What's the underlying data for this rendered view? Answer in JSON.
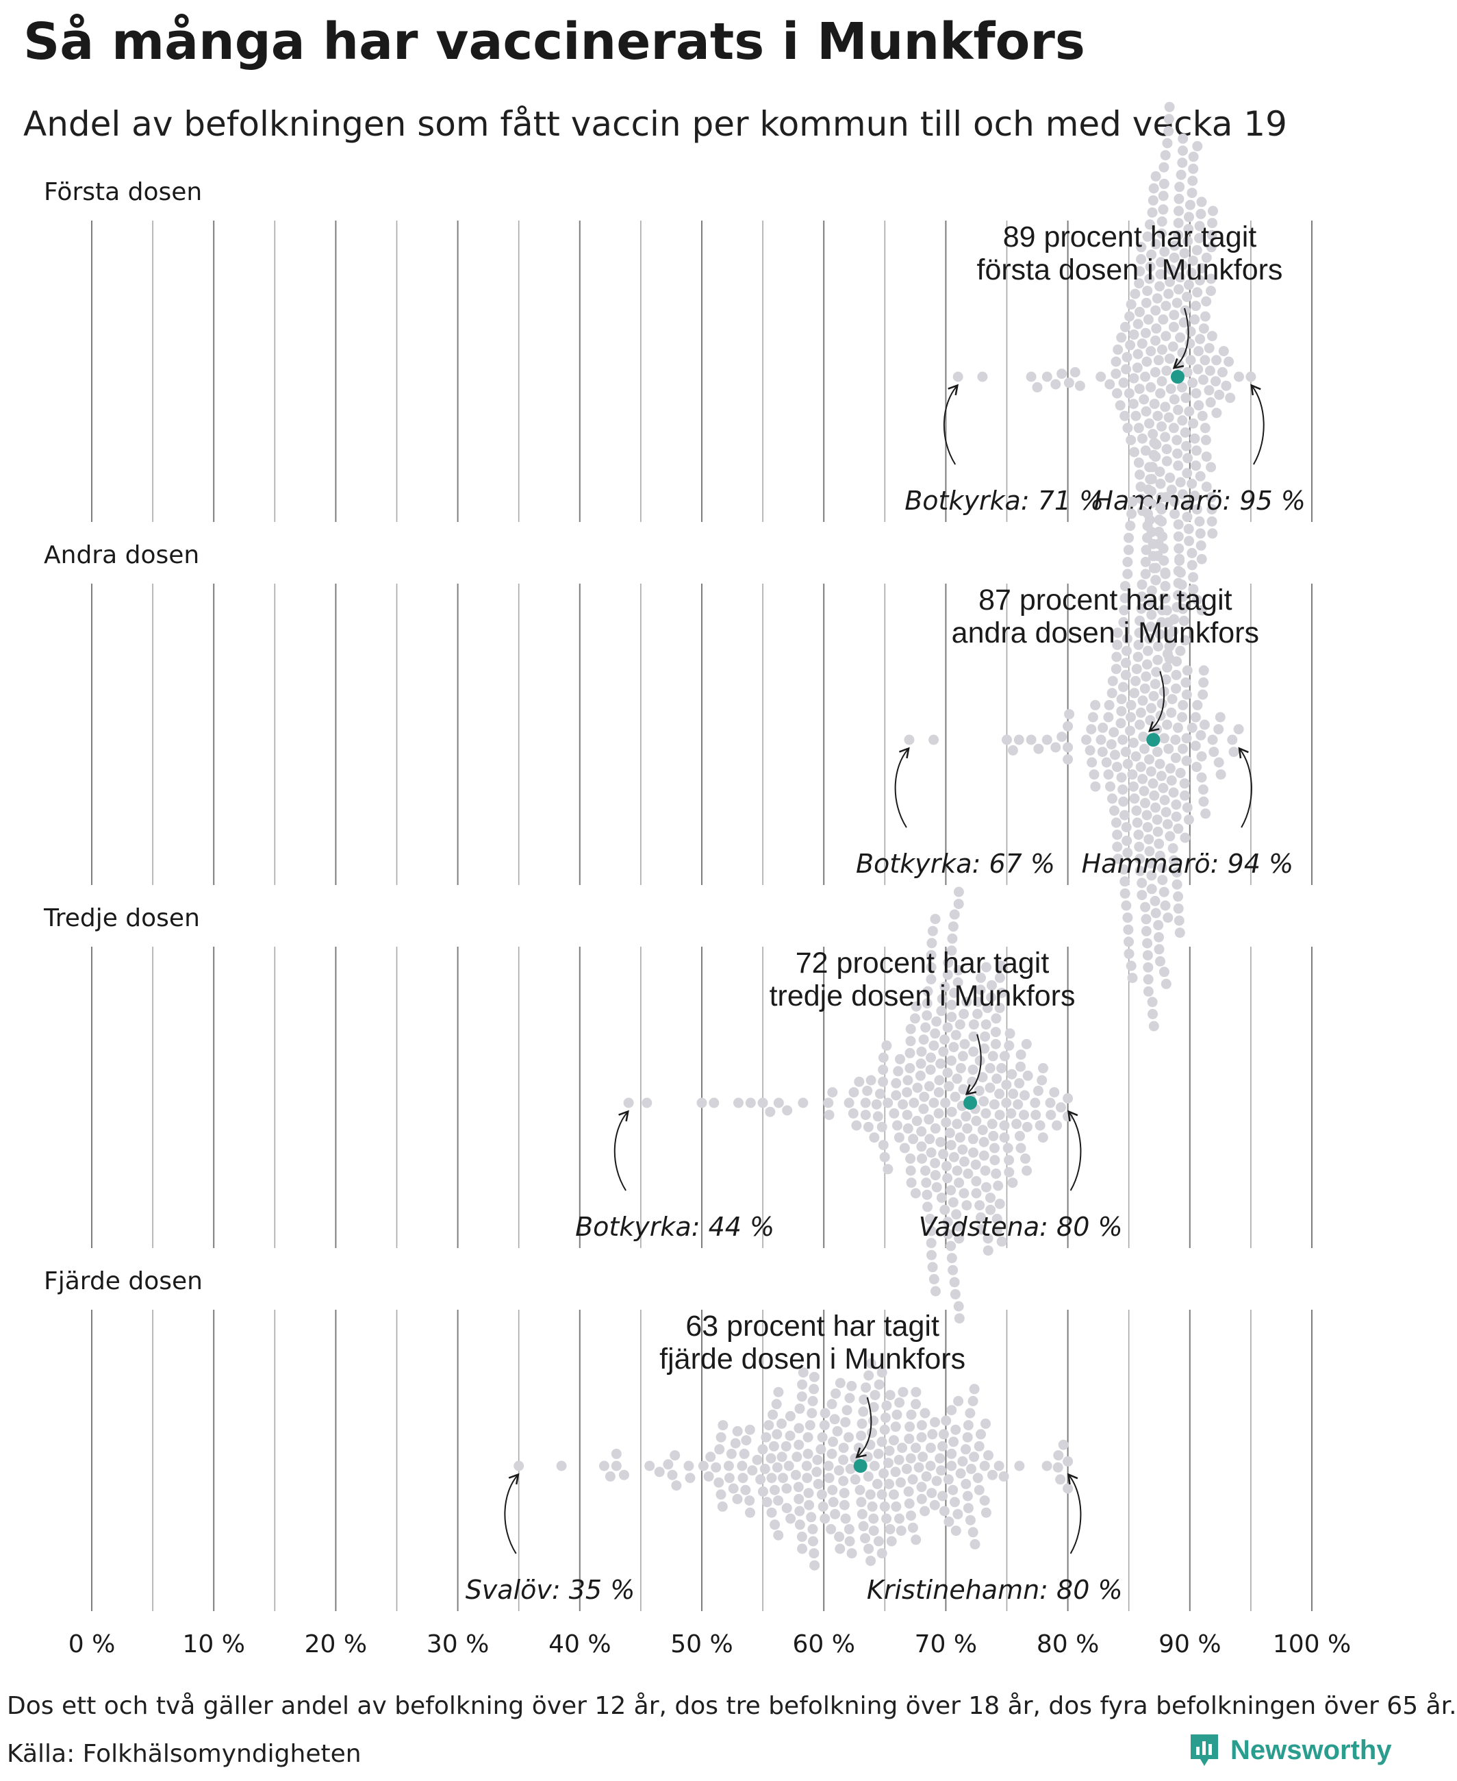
{
  "title": "Så många har vaccinerats i Munkfors",
  "subtitle": "Andel av befolkningen som fått vaccin per kommun till och med vecka 19",
  "note": "Dos ett och två gäller andel av befolkning över 12 år, dos tre befolkning över 18 år, dos fyra befolkningen över 65 år.",
  "source": "Källa: Folkhälsomyndigheten",
  "brand": {
    "name": "Newsworthy",
    "icon": "newsworthy-logo-icon"
  },
  "colors": {
    "highlight": "#1f9a8a",
    "dots": "#d3d3d9",
    "grid": "#8a8a8a",
    "text": "#1a1a1a"
  },
  "chart_data": {
    "type": "scatter",
    "style": "beeswarm",
    "x_axis": {
      "range": [
        0,
        100
      ],
      "ticks": [
        0,
        10,
        20,
        30,
        40,
        50,
        60,
        70,
        80,
        90,
        100
      ],
      "tick_labels": [
        "0 %",
        "10 %",
        "20 %",
        "30 %",
        "40 %",
        "50 %",
        "60 %",
        "70 %",
        "80 %",
        "90 %",
        "100 %"
      ]
    },
    "grid": true,
    "panels": [
      {
        "label": "Första dosen",
        "highlight": {
          "name": "Munkfors",
          "value": 89,
          "label_lines": [
            "89 procent har tagit",
            "första dosen i Munkfors"
          ]
        },
        "min": {
          "label": "Botkyrka: 71 %",
          "value": 71
        },
        "max": {
          "label": "Hammarö: 95 %",
          "value": 95
        },
        "distribution": {
          "count": 290,
          "mode": 88.5,
          "spread": 2.6,
          "low_tail": [
            71,
            73,
            77,
            77.5,
            78.3,
            79,
            79.5,
            80.1,
            80.6,
            81
          ]
        }
      },
      {
        "label": "Andra dosen",
        "highlight": {
          "name": "Munkfors",
          "value": 87,
          "label_lines": [
            "87 procent har tagit",
            "andra dosen i Munkfors"
          ]
        },
        "min": {
          "label": "Botkyrka: 67 %",
          "value": 67
        },
        "max": {
          "label": "Hammarö: 94 %",
          "value": 94
        },
        "distribution": {
          "count": 290,
          "mode": 87,
          "spread": 2.8,
          "low_tail": [
            67,
            69,
            75,
            75.5,
            76,
            77,
            77.6,
            78.3,
            79,
            79.5,
            80
          ]
        }
      },
      {
        "label": "Tredje dosen",
        "highlight": {
          "name": "Munkfors",
          "value": 72,
          "label_lines": [
            "72 procent har tagit",
            "tredje dosen i Munkfors"
          ]
        },
        "min": {
          "label": "Botkyrka: 44 %",
          "value": 44
        },
        "max": {
          "label": "Vadstena: 80 %",
          "value": 80
        },
        "distribution": {
          "count": 290,
          "mode": 70.5,
          "spread": 4.5,
          "low_tail": [
            44,
            45.5,
            50,
            51,
            53,
            54,
            55,
            55.6,
            56.3,
            57,
            58.3
          ]
        }
      },
      {
        "label": "Fjärde dosen",
        "highlight": {
          "name": "Munkfors",
          "value": 63,
          "label_lines": [
            "63 procent har tagit",
            "fjärde dosen i Munkfors"
          ]
        },
        "min": {
          "label": "Svalöv: 35 %",
          "value": 35
        },
        "max": {
          "label": "Kristinehamn: 80 %",
          "value": 80
        },
        "distribution": {
          "count": 290,
          "mode": 63,
          "spread": 8,
          "low_tail": [
            35,
            38.5,
            42,
            42.5,
            43
          ]
        }
      }
    ]
  }
}
